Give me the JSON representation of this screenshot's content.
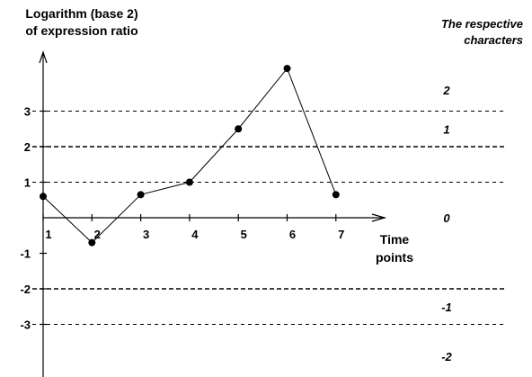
{
  "chart_data": {
    "type": "line",
    "y_title_lines": [
      "Logarithm (base 2)",
      "of expression ratio"
    ],
    "x_title_lines": [
      "Time",
      "points"
    ],
    "right_title_lines": [
      "The respective",
      "characters"
    ],
    "x": [
      1,
      2,
      3,
      4,
      5,
      6,
      7
    ],
    "x_tick_labels": [
      "1",
      "2",
      "3",
      "4",
      "5",
      "6",
      "7"
    ],
    "series": [
      {
        "values": [
          0.6,
          -0.7,
          0.65,
          1.0,
          2.5,
          4.2,
          0.65
        ]
      }
    ],
    "y_ticks": [
      3,
      2,
      1,
      -1,
      -2,
      -3
    ],
    "y_tick_labels": [
      "3",
      "2",
      "1",
      "-1",
      "-2",
      "-3"
    ],
    "reference_lines": [
      3,
      2,
      1,
      -2,
      -3
    ],
    "right_labels": [
      {
        "y": 3.6,
        "text": "2"
      },
      {
        "y": 2.5,
        "text": "1"
      },
      {
        "y": 0.0,
        "text": "0"
      },
      {
        "y": -2.5,
        "text": "-1"
      },
      {
        "y": -3.9,
        "text": "-2"
      }
    ],
    "ylim": [
      -4.4,
      4.6
    ],
    "xlim": [
      1,
      7
    ],
    "grid": false
  }
}
